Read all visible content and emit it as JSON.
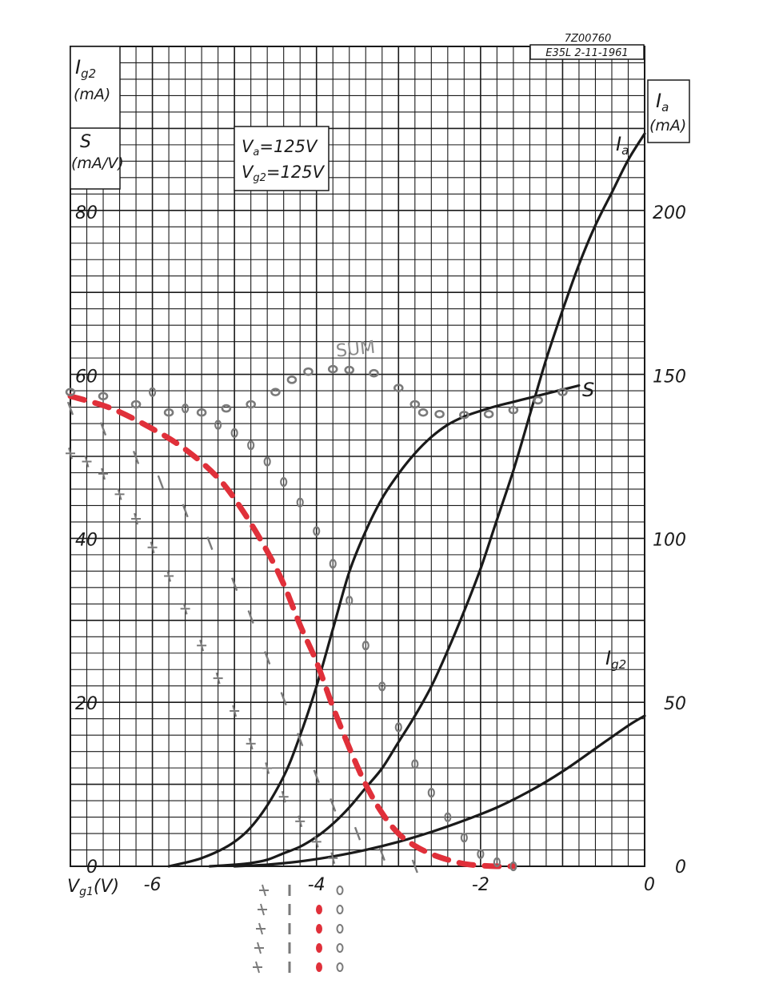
{
  "header": {
    "drawing_number": "7Z00760",
    "stamp": "E35L  2-11-1961"
  },
  "left_axis": {
    "upper_label_symbol": "I",
    "upper_label_sub": "g2",
    "upper_label_unit": "(mA)",
    "lower_label_symbol": "S",
    "lower_label_unit": "(mA/V)",
    "ticks": [
      "0",
      "20",
      "40",
      "60",
      "80"
    ]
  },
  "right_axis": {
    "label_symbol": "I",
    "label_sub": "a",
    "label_unit": "(mA)",
    "ticks": [
      "0",
      "50",
      "100",
      "150",
      "200"
    ]
  },
  "x_axis": {
    "label_symbol": "V",
    "label_sub": "g1",
    "label_unit": "(V)",
    "ticks": [
      "-6",
      "-4",
      "-2",
      "0"
    ]
  },
  "conditions": {
    "line1_symbol": "V",
    "line1_sub": "a",
    "line1_value": "=125V",
    "line2_symbol": "V",
    "line2_sub": "g2",
    "line2_value": "=125V"
  },
  "curve_labels": {
    "ia_symbol": "I",
    "ia_sub": "a",
    "s_label": "S",
    "ig2_symbol": "I",
    "ig2_sub": "g2",
    "sum_label": "SUM"
  },
  "colors": {
    "grid": "#1a1a1a",
    "curves": "#1a1a1a",
    "red_series": "#e0303a",
    "gray_series": "#7a7a7a"
  },
  "chart_data": {
    "type": "line",
    "xlim": [
      -7,
      0
    ],
    "ylim_left": [
      0,
      100
    ],
    "ylim_right": [
      0,
      250
    ],
    "grid": true,
    "series": [
      {
        "name": "Ia",
        "axis": "right",
        "x": [
          -5.3,
          -5.0,
          -4.8,
          -4.6,
          -4.4,
          -4.2,
          -4.0,
          -3.8,
          -3.6,
          -3.4,
          -3.2,
          -3.0,
          -2.8,
          -2.6,
          -2.4,
          -2.2,
          -2.0,
          -1.8,
          -1.6,
          -1.4,
          -1.2,
          -1.0,
          -0.8,
          -0.6,
          -0.4,
          -0.2,
          0.0
        ],
        "y": [
          0,
          0.5,
          1,
          2,
          4,
          6,
          9,
          13,
          18,
          24,
          30,
          38,
          46,
          55,
          66,
          78,
          91,
          106,
          121,
          138,
          155,
          170,
          184,
          196,
          206,
          216,
          224
        ]
      },
      {
        "name": "S",
        "axis": "left",
        "x": [
          -5.8,
          -5.4,
          -5.0,
          -4.7,
          -4.4,
          -4.2,
          -4.0,
          -3.8,
          -3.6,
          -3.4,
          -3.2,
          -3.0,
          -2.8,
          -2.6,
          -2.4,
          -2.2,
          -2.0,
          -1.8,
          -1.6,
          -1.4,
          -1.2,
          -1.0,
          -0.8
        ],
        "y": [
          0,
          1,
          3,
          6,
          11,
          16,
          22,
          29,
          36,
          41,
          45,
          48,
          50.5,
          52.5,
          54,
          55,
          55.7,
          56.3,
          56.8,
          57.3,
          57.8,
          58.3,
          58.8
        ]
      },
      {
        "name": "Ig2",
        "axis": "right",
        "x": [
          -5.0,
          -4.6,
          -4.2,
          -3.8,
          -3.4,
          -3.0,
          -2.6,
          -2.2,
          -1.8,
          -1.4,
          -1.0,
          -0.6,
          -0.2,
          0.0
        ],
        "y": [
          0,
          0.5,
          1.5,
          3,
          5,
          7.5,
          10.5,
          14,
          18,
          23,
          29,
          36,
          43,
          46
        ]
      },
      {
        "name": "red",
        "axis": "left",
        "x": [
          -7.0,
          -6.5,
          -6.0,
          -5.6,
          -5.2,
          -4.9,
          -4.6,
          -4.4,
          -4.2,
          -4.0,
          -3.8,
          -3.6,
          -3.4,
          -3.2,
          -3.0,
          -2.8,
          -2.6,
          -2.4,
          -2.2,
          -2.0,
          -1.8,
          -1.6
        ],
        "y": [
          57.5,
          56,
          53.5,
          51,
          47.5,
          43.5,
          38.5,
          34.5,
          29.5,
          25,
          19.5,
          14.5,
          10,
          6.5,
          4,
          2.5,
          1.5,
          0.8,
          0.3,
          0.1,
          0,
          0
        ]
      },
      {
        "name": "SUM",
        "axis": "left",
        "x": [
          -7.0,
          -6.6,
          -6.2,
          -5.8,
          -5.4,
          -5.1,
          -4.8,
          -4.5,
          -4.3,
          -4.1,
          -3.8,
          -3.6,
          -3.3,
          -3.0,
          -2.8,
          -2.7,
          -2.5,
          -2.2,
          -1.9,
          -1.6,
          -1.3,
          -1.0
        ],
        "y": [
          58,
          57.5,
          56.5,
          55.5,
          55.5,
          56,
          56.5,
          58,
          59.5,
          60.5,
          60.8,
          60.7,
          60.3,
          58.5,
          56.5,
          55.5,
          55.3,
          55.2,
          55.3,
          55.8,
          57,
          58
        ]
      },
      {
        "name": "gray-o",
        "axis": "left",
        "x": [
          -6.0,
          -5.6,
          -5.2,
          -5.0,
          -4.8,
          -4.6,
          -4.4,
          -4.2,
          -4.0,
          -3.8,
          -3.6,
          -3.4,
          -3.2,
          -3.0,
          -2.8,
          -2.6,
          -2.4,
          -2.2,
          -2.0,
          -1.8,
          -1.6
        ],
        "y": [
          58,
          56,
          54,
          53,
          51.5,
          49.5,
          47,
          44.5,
          41,
          37,
          32.5,
          27,
          22,
          17,
          12.5,
          9,
          6,
          3.5,
          1.5,
          0.5,
          0
        ]
      },
      {
        "name": "gray-dash",
        "axis": "left",
        "x": [
          -7.0,
          -6.6,
          -6.2,
          -5.9,
          -5.6,
          -5.3,
          -5.0,
          -4.8,
          -4.6,
          -4.4,
          -4.2,
          -4.0,
          -3.8,
          -3.5,
          -3.2,
          -2.8
        ],
        "y": [
          56,
          53.5,
          50,
          47,
          43.5,
          39.5,
          34.5,
          30.5,
          25.5,
          20.5,
          15.5,
          11,
          7.5,
          4,
          1.5,
          0
        ]
      },
      {
        "name": "gray-x",
        "axis": "left",
        "x": [
          -7.0,
          -6.8,
          -6.6,
          -6.4,
          -6.2,
          -6.0,
          -5.8,
          -5.6,
          -5.4,
          -5.2,
          -5.0,
          -4.8,
          -4.6,
          -4.4,
          -4.2,
          -4.0,
          -3.8
        ],
        "y": [
          50.5,
          49.5,
          48,
          45.5,
          42.5,
          39,
          35.5,
          31.5,
          27,
          23,
          19,
          15,
          12,
          8.5,
          5.5,
          3,
          1
        ]
      }
    ]
  }
}
